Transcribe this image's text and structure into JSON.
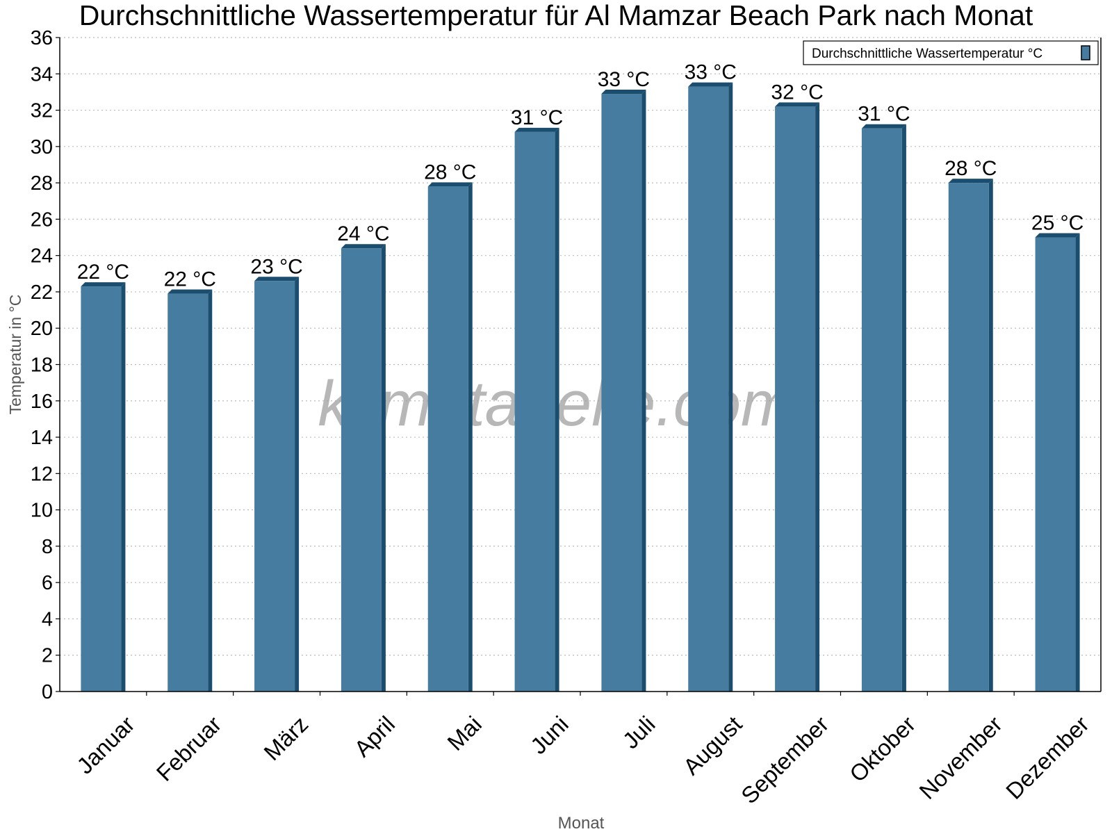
{
  "chart_data": {
    "type": "bar",
    "title": "Durchschnittliche Wassertemperatur für Al Mamzar Beach Park nach Monat",
    "xlabel": "Monat",
    "ylabel": "Temperatur in °C",
    "categories": [
      "Januar",
      "Februar",
      "März",
      "April",
      "Mai",
      "Juni",
      "Juli",
      "August",
      "September",
      "Oktober",
      "November",
      "Dezember"
    ],
    "series": [
      {
        "name": "Durchschnittliche Wassertemperatur °C",
        "values": [
          22.3,
          21.9,
          22.6,
          24.4,
          27.8,
          30.8,
          32.9,
          33.3,
          32.2,
          31.0,
          28.0,
          25.0
        ],
        "data_labels": [
          "22 °C",
          "22 °C",
          "23 °C",
          "24 °C",
          "28 °C",
          "31 °C",
          "33 °C",
          "33 °C",
          "32 °C",
          "31 °C",
          "28 °C",
          "25 °C"
        ],
        "color": "#467c9f",
        "edge_color": "#1b4d6e"
      }
    ],
    "ylim": [
      0,
      36
    ],
    "yticks": [
      "0",
      "2",
      "4",
      "6",
      "8",
      "10",
      "12",
      "14",
      "16",
      "18",
      "20",
      "22",
      "24",
      "26",
      "28",
      "30",
      "32",
      "34",
      "36"
    ],
    "grid": true,
    "legend_position": "top-right",
    "watermark": "klimatabelle.com"
  }
}
